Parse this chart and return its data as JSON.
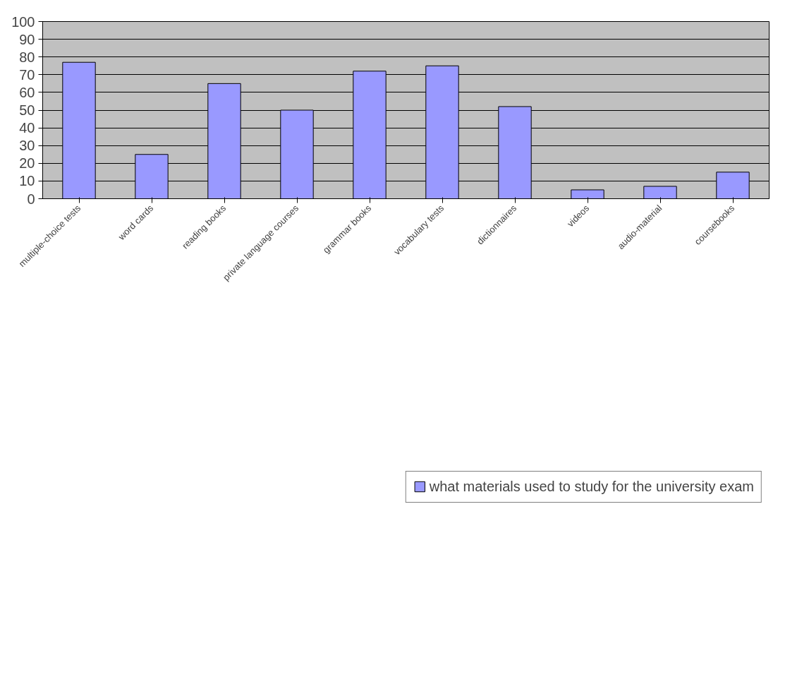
{
  "chart_data": {
    "type": "bar",
    "categories": [
      "multiple-choice tests",
      "word cards",
      "reading books",
      "private language courses",
      "grammar books",
      "vocabulary tests",
      "dictionnaires",
      "videos",
      "audio-material",
      "coursebooks"
    ],
    "series": [
      {
        "name": "what materials used to study for the university exam",
        "color": "#9999ff",
        "values": [
          77,
          25,
          65,
          50,
          72,
          75,
          52,
          5,
          7,
          15
        ]
      }
    ],
    "ylim": [
      0,
      100
    ],
    "yticks": [
      0,
      10,
      20,
      30,
      40,
      50,
      60,
      70,
      80,
      90,
      100
    ],
    "grid": "y",
    "legend": "bottom"
  }
}
